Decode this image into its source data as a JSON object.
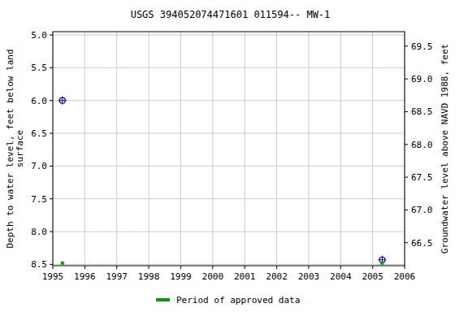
{
  "chart_data": {
    "type": "scatter",
    "title": "USGS 394052074471601 011594-- MW-1",
    "y_label": "Depth to water level, feet below land\nsurface",
    "y2_label": "Groundwater level above NAVD 1988, feet",
    "x": [
      1995.3,
      2005.3
    ],
    "xlim": [
      1995,
      2006
    ],
    "xticks": [
      1995,
      1996,
      1997,
      1998,
      1999,
      2000,
      2001,
      2002,
      2003,
      2004,
      2005,
      2006
    ],
    "ylim": [
      8.52,
      4.95
    ],
    "yticks": [
      {
        "value": 5,
        "label": "5.0"
      },
      5.5,
      {
        "value": 6,
        "label": "6.0"
      },
      6.5,
      {
        "value": 7,
        "label": "7.0"
      },
      7.5,
      {
        "value": 8,
        "label": "8.0"
      },
      8.5
    ],
    "y2lim": [
      66.15,
      69.72
    ],
    "y2ticks": [
      66.5,
      {
        "value": 67,
        "label": "67.0"
      },
      67.5,
      {
        "value": 68,
        "label": "68.0"
      },
      68.5,
      {
        "value": 69,
        "label": "69.0"
      },
      69.5
    ],
    "grid": true,
    "legend": "bottom",
    "series": [
      {
        "color": "#0000cc",
        "marker": "circle-cross",
        "values": [
          6.0,
          8.43
        ]
      },
      {
        "name": "Period of approved data",
        "color": "#00a000",
        "marker": "square",
        "values": [
          8.48,
          8.48
        ]
      }
    ]
  }
}
